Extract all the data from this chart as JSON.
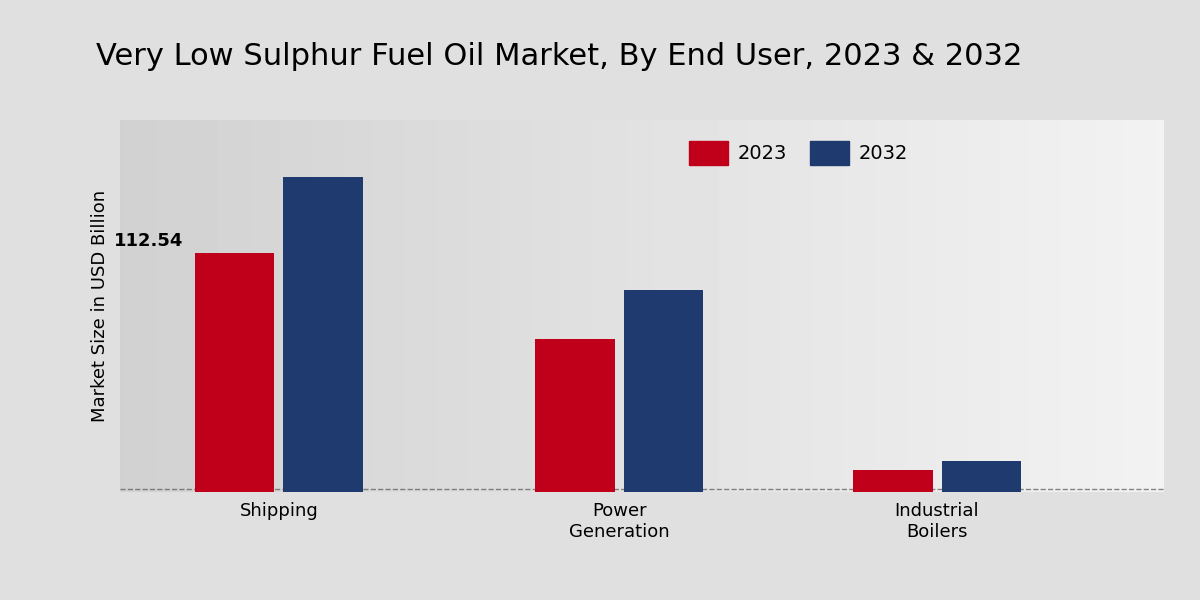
{
  "title": "Very Low Sulphur Fuel Oil Market, By End User, 2023 & 2032",
  "ylabel": "Market Size in USD Billion",
  "categories": [
    "Shipping",
    "Power\nGeneration",
    "Industrial\nBoilers"
  ],
  "values_2023": [
    112.54,
    72.0,
    10.5
  ],
  "values_2032": [
    148.0,
    95.0,
    14.5
  ],
  "color_2023": "#c0001a",
  "color_2032": "#1e3a6e",
  "bar_width": 0.35,
  "x_positions": [
    1.0,
    2.5,
    3.9
  ],
  "annotation_2023": "112.54",
  "background_color_left": "#d6d6d6",
  "background_color_right": "#f0f0f0",
  "title_fontsize": 22,
  "label_fontsize": 13,
  "tick_fontsize": 13,
  "legend_fontsize": 14,
  "annotation_fontsize": 13,
  "ylim": [
    0,
    175
  ],
  "xlim": [
    0.3,
    4.9
  ]
}
